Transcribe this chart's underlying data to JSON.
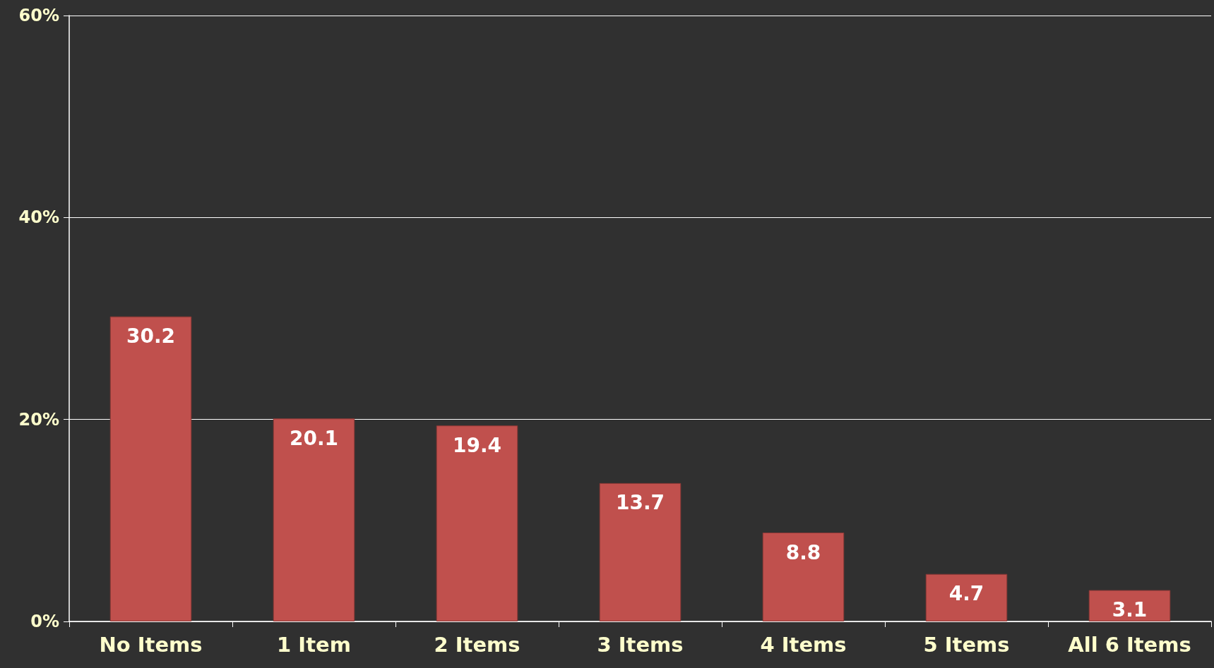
{
  "chart_data": {
    "type": "bar",
    "categories": [
      "No Items",
      "1 Item",
      "2 Items",
      "3 Items",
      "4 Items",
      "5 Items",
      "All 6 Items"
    ],
    "values": [
      30.2,
      20.1,
      19.4,
      13.7,
      8.8,
      4.7,
      3.1
    ],
    "color": "#c0504d",
    "ylim": [
      0,
      60
    ],
    "yticks": [
      {
        "value": 0,
        "label": "0%"
      },
      {
        "value": 20,
        "label": "20%"
      },
      {
        "value": 40,
        "label": "40%"
      },
      {
        "value": 60,
        "label": "60%"
      }
    ],
    "grid": "y",
    "data_labels": true
  }
}
